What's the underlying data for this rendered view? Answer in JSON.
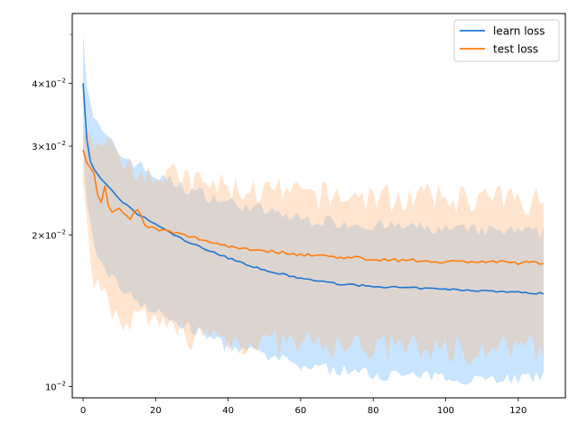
{
  "chart_data": {
    "type": "line",
    "title": "",
    "xlabel": "",
    "ylabel": "",
    "yscale": "log",
    "xlim": [
      -3,
      133
    ],
    "ylim": [
      0.0095,
      0.055
    ],
    "x_ticks": [
      0,
      20,
      40,
      60,
      80,
      100,
      120
    ],
    "x_tick_labels": [
      "0",
      "20",
      "40",
      "60",
      "80",
      "100",
      "120"
    ],
    "y_ticks": [
      0.01,
      0.02,
      0.03,
      0.04
    ],
    "y_tick_labels": [
      {
        "mantissa": "",
        "base": "10",
        "exp": "−2"
      },
      {
        "mantissa": "2",
        "base": "10",
        "exp": "−2"
      },
      {
        "mantissa": "3",
        "base": "10",
        "exp": "−2"
      },
      {
        "mantissa": "4",
        "base": "10",
        "exp": "−2"
      }
    ],
    "y_minor_unlabeled_ticks": [
      0.05
    ],
    "grid": false,
    "legend_position": "top-right",
    "x_count": 128,
    "series": [
      {
        "name": "learn loss",
        "color": "#1f77d4",
        "band_color": "#7fbfff",
        "band_opacity": 0.42,
        "keypoints": [
          [
            0,
            0.04
          ],
          [
            1,
            0.031
          ],
          [
            2,
            0.028
          ],
          [
            3,
            0.027
          ],
          [
            5,
            0.0258
          ],
          [
            8,
            0.0245
          ],
          [
            10,
            0.0235
          ],
          [
            15,
            0.022
          ],
          [
            20,
            0.021
          ],
          [
            25,
            0.02
          ],
          [
            30,
            0.0192
          ],
          [
            40,
            0.018
          ],
          [
            50,
            0.017
          ],
          [
            60,
            0.0164
          ],
          [
            70,
            0.016
          ],
          [
            80,
            0.0158
          ],
          [
            90,
            0.0157
          ],
          [
            100,
            0.0156
          ],
          [
            110,
            0.0155
          ],
          [
            127,
            0.0153
          ]
        ],
        "band_upper_keypoints": [
          [
            0,
            0.052
          ],
          [
            1,
            0.04
          ],
          [
            3,
            0.034
          ],
          [
            5,
            0.032
          ],
          [
            10,
            0.029
          ],
          [
            20,
            0.0262
          ],
          [
            30,
            0.0245
          ],
          [
            40,
            0.0232
          ],
          [
            60,
            0.0215
          ],
          [
            80,
            0.0209
          ],
          [
            100,
            0.0205
          ],
          [
            127,
            0.0202
          ]
        ],
        "band_lower_keypoints": [
          [
            0,
            0.029
          ],
          [
            1,
            0.023
          ],
          [
            3,
            0.019
          ],
          [
            5,
            0.0175
          ],
          [
            10,
            0.0158
          ],
          [
            20,
            0.014
          ],
          [
            30,
            0.013
          ],
          [
            40,
            0.012
          ],
          [
            60,
            0.011
          ],
          [
            80,
            0.0106
          ],
          [
            100,
            0.0104
          ],
          [
            127,
            0.0104
          ]
        ]
      },
      {
        "name": "test loss",
        "color": "#ff7f0e",
        "band_color": "#ffb77a",
        "band_opacity": 0.36,
        "keypoints": [
          [
            0,
            0.0295
          ],
          [
            1,
            0.0278
          ],
          [
            2,
            0.0272
          ],
          [
            3,
            0.0265
          ],
          [
            4,
            0.024
          ],
          [
            5,
            0.0232
          ],
          [
            6,
            0.025
          ],
          [
            7,
            0.0228
          ],
          [
            8,
            0.0222
          ],
          [
            10,
            0.0226
          ],
          [
            13,
            0.0216
          ],
          [
            15,
            0.0225
          ],
          [
            17,
            0.021
          ],
          [
            20,
            0.0205
          ],
          [
            25,
            0.0202
          ],
          [
            30,
            0.0198
          ],
          [
            40,
            0.019
          ],
          [
            50,
            0.0186
          ],
          [
            60,
            0.0183
          ],
          [
            70,
            0.0181
          ],
          [
            80,
            0.0179
          ],
          [
            90,
            0.0178
          ],
          [
            100,
            0.0177
          ],
          [
            110,
            0.0177
          ],
          [
            120,
            0.0176
          ],
          [
            127,
            0.0176
          ]
        ],
        "band_upper_keypoints": [
          [
            0,
            0.033
          ],
          [
            1,
            0.032
          ],
          [
            3,
            0.0315
          ],
          [
            5,
            0.03
          ],
          [
            8,
            0.0292
          ],
          [
            10,
            0.0285
          ],
          [
            15,
            0.0275
          ],
          [
            20,
            0.0265
          ],
          [
            30,
            0.0255
          ],
          [
            40,
            0.0248
          ],
          [
            60,
            0.024
          ],
          [
            80,
            0.0238
          ],
          [
            100,
            0.0237
          ],
          [
            127,
            0.0235
          ]
        ],
        "band_lower_keypoints": [
          [
            0,
            0.027
          ],
          [
            1,
            0.023
          ],
          [
            2,
            0.0185
          ],
          [
            3,
            0.0165
          ],
          [
            5,
            0.015
          ],
          [
            8,
            0.0142
          ],
          [
            10,
            0.0138
          ],
          [
            20,
            0.0132
          ],
          [
            30,
            0.0127
          ],
          [
            40,
            0.0124
          ],
          [
            60,
            0.0121
          ],
          [
            80,
            0.012
          ],
          [
            100,
            0.0119
          ],
          [
            127,
            0.0119
          ]
        ]
      }
    ]
  }
}
